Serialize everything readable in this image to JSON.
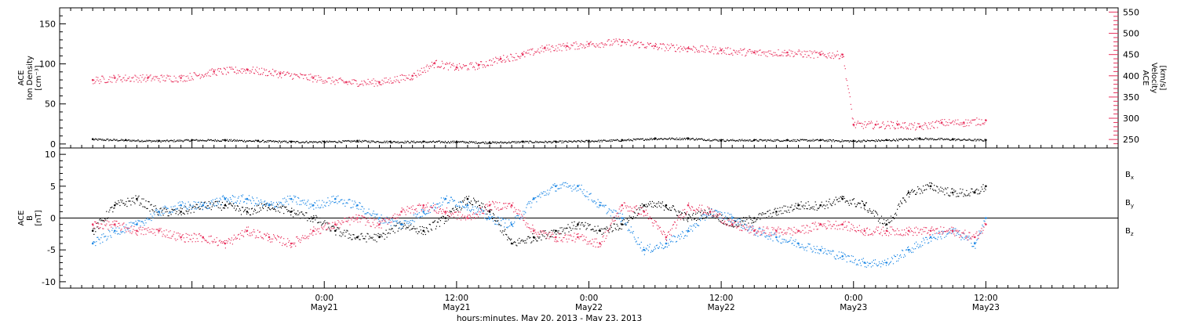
{
  "colors": {
    "black": "#000000",
    "pink": "#e8325e",
    "blue": "#1e88e5"
  },
  "chart_data": [
    {
      "type": "scatter",
      "panel": "top",
      "ylabel_left_lines": [
        "ACE",
        "Ion Density",
        "[cm⁻³]"
      ],
      "ylabel_right_lines": [
        "ACE",
        "Velocity",
        "[km/s]"
      ],
      "ylim_left": [
        -5,
        170
      ],
      "yticks_left": [
        0,
        50,
        100,
        150
      ],
      "ylim_right": [
        230,
        560
      ],
      "yticks_right": [
        250,
        300,
        350,
        400,
        450,
        500,
        550
      ],
      "series": [
        {
          "axis": "left",
          "color": "#000000",
          "x": [
            -21,
            -18,
            -15,
            -12,
            -9,
            -6,
            -3,
            0,
            3,
            6,
            9,
            12,
            15,
            18,
            21,
            24,
            27,
            30,
            33,
            36,
            39,
            42,
            45,
            48,
            51,
            54,
            57,
            60
          ],
          "y": [
            6,
            5,
            4,
            5,
            5,
            4,
            3,
            3,
            4,
            3,
            3,
            3,
            2,
            3,
            3,
            4,
            5,
            7,
            7,
            5,
            5,
            5,
            5,
            4,
            5,
            7,
            6,
            5
          ]
        },
        {
          "axis": "right",
          "color": "#e8325e",
          "x": [
            -21,
            -19,
            -16,
            -13,
            -10,
            -7,
            -4,
            -1,
            2,
            5,
            8,
            10,
            12,
            14,
            16,
            18,
            20,
            22,
            24,
            27,
            30,
            33,
            36,
            39,
            42,
            45,
            47,
            48,
            50,
            52,
            54,
            56,
            58,
            60
          ],
          "y": [
            390,
            395,
            395,
            395,
            410,
            415,
            405,
            395,
            385,
            385,
            400,
            430,
            420,
            425,
            440,
            450,
            465,
            470,
            475,
            480,
            470,
            465,
            460,
            455,
            455,
            450,
            450,
            285,
            285,
            285,
            280,
            290,
            290,
            295
          ]
        }
      ]
    },
    {
      "type": "scatter",
      "panel": "bottom",
      "ylabel_lines": [
        "ACE",
        "B",
        "[nT]"
      ],
      "ylim": [
        -11,
        11
      ],
      "yticks": [
        -10,
        -5,
        0,
        5,
        10
      ],
      "xlim": [
        -24,
        72
      ],
      "xticks": [
        {
          "x": 0,
          "time": "0:00",
          "date": "May21"
        },
        {
          "x": 12,
          "time": "12:00",
          "date": "May21"
        },
        {
          "x": 24,
          "time": "0:00",
          "date": "May22"
        },
        {
          "x": 36,
          "time": "12:00",
          "date": "May22"
        },
        {
          "x": 48,
          "time": "0:00",
          "date": "May23"
        },
        {
          "x": 60,
          "time": "12:00",
          "date": "May23"
        }
      ],
      "xlabel": "hours:minutes, May 20, 2013 - May 23, 2013",
      "legend": [
        {
          "label": "B",
          "subscript": "x",
          "color": "#000000"
        },
        {
          "label": "B",
          "subscript": "y",
          "color": "#1e88e5"
        },
        {
          "label": "B",
          "subscript": "z",
          "color": "#e8325e"
        }
      ],
      "series": [
        {
          "name": "Bx",
          "color": "#000000",
          "x": [
            -21,
            -19,
            -17,
            -15,
            -13,
            -11,
            -9,
            -7,
            -5,
            -3,
            -1,
            1,
            3,
            5,
            7,
            9,
            11,
            13,
            15,
            17,
            19,
            21,
            23,
            25,
            27,
            29,
            31,
            33,
            35,
            37,
            39,
            41,
            43,
            45,
            47,
            49,
            51,
            53,
            55,
            57,
            59,
            60
          ],
          "y": [
            -2,
            2,
            3,
            1,
            1,
            2,
            2,
            1,
            2,
            1,
            0,
            -2,
            -3,
            -3,
            -1,
            -2,
            0,
            3,
            1,
            -4,
            -3,
            -2,
            -1,
            -2,
            -1,
            2,
            2,
            0,
            1,
            -1,
            0,
            1,
            2,
            2,
            3,
            2,
            -1,
            4,
            5,
            4,
            4,
            5
          ]
        },
        {
          "name": "By",
          "color": "#1e88e5",
          "x": [
            -21,
            -19,
            -17,
            -15,
            -13,
            -11,
            -9,
            -7,
            -5,
            -3,
            -1,
            1,
            3,
            5,
            7,
            9,
            11,
            13,
            15,
            17,
            19,
            21,
            23,
            25,
            27,
            29,
            31,
            33,
            35,
            37,
            39,
            41,
            43,
            45,
            47,
            49,
            51,
            53,
            55,
            57,
            59,
            60
          ],
          "y": [
            -4,
            -2,
            -1,
            1,
            2,
            2,
            3,
            3,
            2,
            3,
            2,
            3,
            2,
            0,
            -1,
            1,
            3,
            2,
            0,
            -1,
            3,
            5,
            5,
            2,
            0,
            -5,
            -4,
            -2,
            1,
            0,
            -2,
            -3,
            -4,
            -5,
            -6,
            -7,
            -7,
            -5,
            -3,
            -2,
            -4,
            0
          ]
        },
        {
          "name": "Bz",
          "color": "#e8325e",
          "x": [
            -21,
            -19,
            -17,
            -15,
            -13,
            -11,
            -9,
            -7,
            -5,
            -3,
            -1,
            1,
            3,
            5,
            7,
            9,
            11,
            13,
            15,
            17,
            19,
            21,
            23,
            25,
            27,
            29,
            31,
            33,
            35,
            37,
            39,
            41,
            43,
            45,
            47,
            49,
            51,
            53,
            55,
            57,
            59,
            60
          ],
          "y": [
            -1,
            -1,
            -2,
            -2,
            -3,
            -3,
            -4,
            -2,
            -3,
            -4,
            -2,
            -1,
            0,
            -1,
            1,
            2,
            1,
            0,
            2,
            2,
            -2,
            -3,
            -3,
            -4,
            2,
            1,
            -3,
            2,
            1,
            -1,
            -2,
            -2,
            -2,
            -1,
            -1,
            -2,
            -2,
            -2,
            -2,
            -2,
            -3,
            -1
          ]
        }
      ]
    }
  ]
}
